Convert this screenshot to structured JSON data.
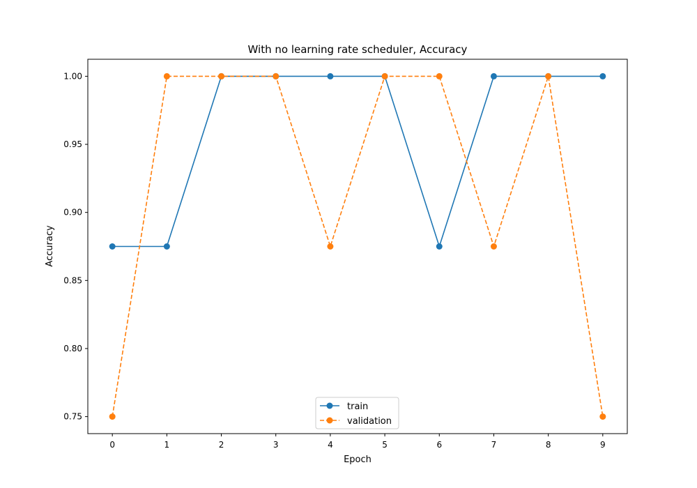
{
  "chart_data": {
    "type": "line",
    "title": "With no learning rate scheduler, Accuracy",
    "xlabel": "Epoch",
    "ylabel": "Accuracy",
    "x": [
      0,
      1,
      2,
      3,
      4,
      5,
      6,
      7,
      8,
      9
    ],
    "x_ticks": [
      "0",
      "1",
      "2",
      "3",
      "4",
      "5",
      "6",
      "7",
      "8",
      "9"
    ],
    "y_ticks": [
      "0.75",
      "0.80",
      "0.85",
      "0.90",
      "0.95",
      "1.00"
    ],
    "xlim": [
      -0.45,
      9.45
    ],
    "ylim": [
      0.7375,
      1.0125
    ],
    "grid": false,
    "legend_position": "bottom-center",
    "series": [
      {
        "name": "train",
        "color": "#1f77b4",
        "line_style": "solid",
        "marker": "circle",
        "values": [
          0.875,
          0.875,
          1.0,
          1.0,
          1.0,
          1.0,
          0.875,
          1.0,
          1.0,
          1.0
        ]
      },
      {
        "name": "validation",
        "color": "#ff7f0e",
        "line_style": "dashed",
        "marker": "circle",
        "values": [
          0.75,
          1.0,
          1.0,
          1.0,
          0.875,
          1.0,
          1.0,
          0.875,
          1.0,
          0.75
        ]
      }
    ]
  }
}
